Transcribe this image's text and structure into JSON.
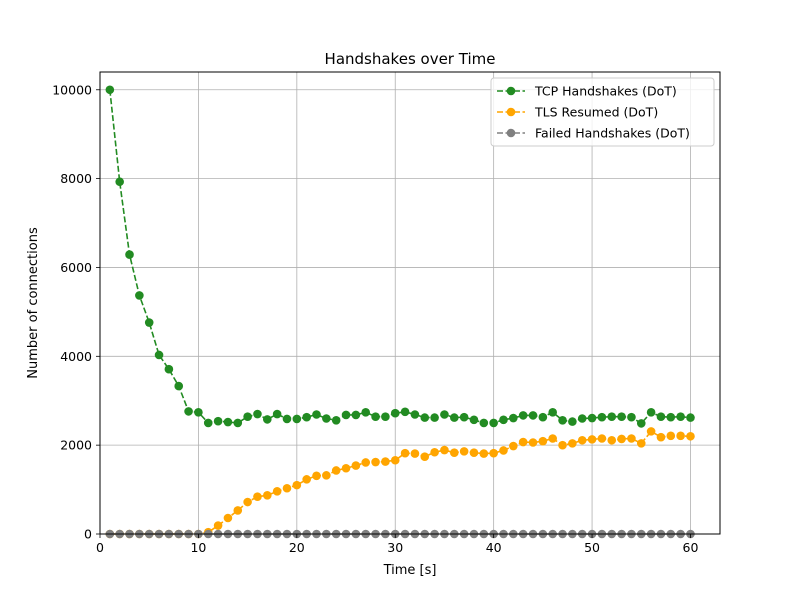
{
  "chart_data": {
    "type": "line",
    "title": "Handshakes over Time",
    "xlabel": "Time [s]",
    "ylabel": "Number of connections",
    "xlim": [
      0,
      63
    ],
    "ylim": [
      0,
      10400
    ],
    "xticks": [
      0,
      10,
      20,
      30,
      40,
      50,
      60
    ],
    "yticks": [
      0,
      2000,
      4000,
      6000,
      8000,
      10000
    ],
    "grid": true,
    "legend_position": "top-right",
    "x": [
      1,
      2,
      3,
      4,
      5,
      6,
      7,
      8,
      9,
      10,
      11,
      12,
      13,
      14,
      15,
      16,
      17,
      18,
      19,
      20,
      21,
      22,
      23,
      24,
      25,
      26,
      27,
      28,
      29,
      30,
      31,
      32,
      33,
      34,
      35,
      36,
      37,
      38,
      39,
      40,
      41,
      42,
      43,
      44,
      45,
      46,
      47,
      48,
      49,
      50,
      51,
      52,
      53,
      54,
      55,
      56,
      57,
      58,
      59,
      60
    ],
    "series": [
      {
        "name": "TCP Handshakes (DoT)",
        "color": "#228B22",
        "linestyle": "dashed",
        "marker": "circle",
        "values": [
          10000,
          7930,
          6290,
          5370,
          4760,
          4030,
          3710,
          3330,
          2760,
          2740,
          2500,
          2540,
          2520,
          2500,
          2640,
          2700,
          2580,
          2700,
          2590,
          2590,
          2630,
          2690,
          2600,
          2560,
          2680,
          2680,
          2740,
          2640,
          2640,
          2720,
          2750,
          2690,
          2620,
          2620,
          2690,
          2620,
          2630,
          2570,
          2500,
          2500,
          2570,
          2610,
          2670,
          2670,
          2630,
          2740,
          2560,
          2530,
          2600,
          2610,
          2630,
          2640,
          2640,
          2630,
          2490,
          2740,
          2640,
          2630,
          2640,
          2620
        ]
      },
      {
        "name": "TLS Resumed (DoT)",
        "color": "#FFA500",
        "linestyle": "dashed",
        "marker": "circle",
        "values": [
          0,
          0,
          0,
          0,
          0,
          0,
          0,
          0,
          0,
          0,
          40,
          190,
          360,
          530,
          720,
          840,
          870,
          960,
          1030,
          1100,
          1230,
          1310,
          1320,
          1430,
          1480,
          1540,
          1610,
          1620,
          1630,
          1660,
          1820,
          1810,
          1740,
          1840,
          1890,
          1830,
          1860,
          1830,
          1810,
          1820,
          1880,
          1980,
          2070,
          2060,
          2090,
          2150,
          2000,
          2040,
          2110,
          2130,
          2150,
          2110,
          2140,
          2150,
          2040,
          2310,
          2180,
          2210,
          2210,
          2200
        ]
      },
      {
        "name": "Failed Handshakes (DoT)",
        "color": "#808080",
        "linestyle": "dashed",
        "marker": "circle",
        "values": [
          0,
          0,
          0,
          0,
          0,
          0,
          0,
          0,
          0,
          0,
          0,
          0,
          0,
          0,
          0,
          0,
          0,
          0,
          0,
          0,
          0,
          0,
          0,
          0,
          0,
          0,
          0,
          0,
          0,
          0,
          0,
          0,
          0,
          0,
          0,
          0,
          0,
          0,
          0,
          0,
          0,
          0,
          0,
          0,
          0,
          0,
          0,
          0,
          0,
          0,
          0,
          0,
          0,
          0,
          0,
          0,
          0,
          0,
          0,
          0
        ]
      }
    ]
  }
}
